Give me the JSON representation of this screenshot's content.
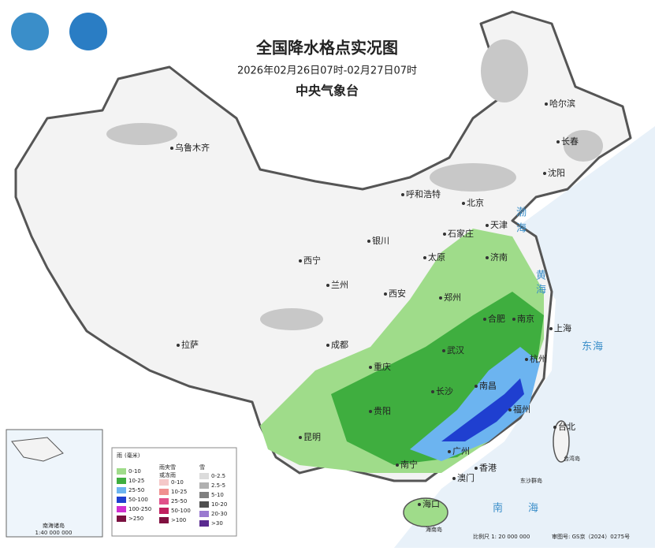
{
  "header": {
    "title": "全国降水格点实况图",
    "period": "2026年02月26日07时-02月27日07时",
    "agency": "中央气象台"
  },
  "cities": [
    "乌鲁木齐",
    "哈尔滨",
    "长春",
    "沈阳",
    "呼和浩特",
    "北京",
    "天津",
    "石家庄",
    "银川",
    "太原",
    "济南",
    "西宁",
    "兰州",
    "西安",
    "郑州",
    "合肥",
    "南京",
    "上海",
    "拉萨",
    "成都",
    "武汉",
    "杭州",
    "重庆",
    "长沙",
    "南昌",
    "贵阳",
    "福州",
    "台北",
    "昆明",
    "广州",
    "南宁",
    "香港",
    "澳门",
    "海口"
  ],
  "seas": [
    "渤",
    "海",
    "黄",
    "海",
    "东",
    "海",
    "南",
    "海"
  ],
  "islands": [
    "台湾岛",
    "东沙群岛",
    "海南岛"
  ],
  "legend": {
    "rain": {
      "title": "雨",
      "unit": "(毫米)",
      "ranges": [
        "0-10",
        "10-25",
        "25-50",
        "50-100",
        "100-250",
        ">250"
      ]
    },
    "sleet": {
      "title": "雨夹雪",
      "subtitle": "或冻雨",
      "ranges": [
        "0-10",
        "10-25",
        "25-50",
        "50-100",
        ">100"
      ]
    },
    "snow": {
      "title": "雪",
      "ranges": [
        "0-2.5",
        "2.5-5",
        "5-10",
        "10-20",
        "20-30",
        ">30"
      ]
    }
  },
  "inset": {
    "label": "南海诸岛",
    "scale": "1:40 000 000"
  },
  "footer": {
    "scale": "比例尺 1: 20 000 000",
    "approval": "审图号: GS京（2024）0275号"
  }
}
